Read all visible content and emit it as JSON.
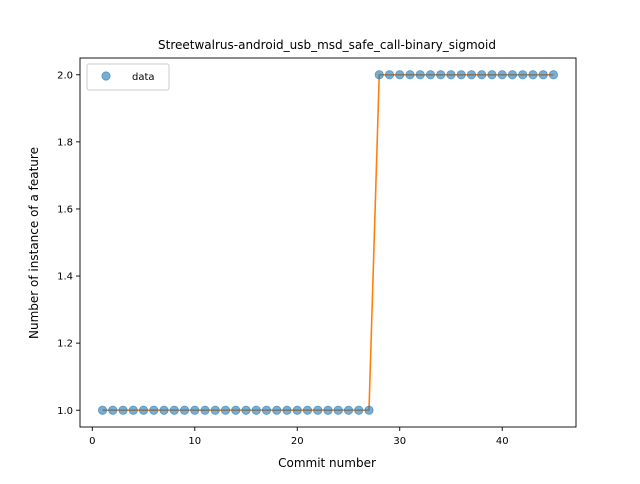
{
  "chart_data": {
    "type": "line",
    "title": "Streetwalrus-android_usb_msd_safe_call-binary_sigmoid",
    "xlabel": "Commit number",
    "ylabel": "Number of instance of a feature",
    "xlim": [
      -1.2,
      47.2
    ],
    "ylim": [
      0.95,
      2.05
    ],
    "xticks": [
      0,
      10,
      20,
      30,
      40
    ],
    "yticks": [
      1.0,
      1.2,
      1.4,
      1.6,
      1.8,
      2.0
    ],
    "ytick_labels": [
      "1.0",
      "1.2",
      "1.4",
      "1.6",
      "1.8",
      "2.0"
    ],
    "grid": false,
    "legend": {
      "position": "top-left",
      "entries": [
        "data"
      ]
    },
    "series": [
      {
        "name": "data",
        "style": "markers",
        "color": "#1f77b4",
        "x": [
          1,
          2,
          3,
          4,
          5,
          6,
          7,
          8,
          9,
          10,
          11,
          12,
          13,
          14,
          15,
          16,
          17,
          18,
          19,
          20,
          21,
          22,
          23,
          24,
          25,
          26,
          27,
          28,
          29,
          30,
          31,
          32,
          33,
          34,
          35,
          36,
          37,
          38,
          39,
          40,
          41,
          42,
          43,
          44,
          45
        ],
        "y": [
          1,
          1,
          1,
          1,
          1,
          1,
          1,
          1,
          1,
          1,
          1,
          1,
          1,
          1,
          1,
          1,
          1,
          1,
          1,
          1,
          1,
          1,
          1,
          1,
          1,
          1,
          1,
          2,
          2,
          2,
          2,
          2,
          2,
          2,
          2,
          2,
          2,
          2,
          2,
          2,
          2,
          2,
          2,
          2,
          2
        ]
      },
      {
        "style": "line",
        "color": "#ff7f0e",
        "x": [
          1,
          2,
          3,
          4,
          5,
          6,
          7,
          8,
          9,
          10,
          11,
          12,
          13,
          14,
          15,
          16,
          17,
          18,
          19,
          20,
          21,
          22,
          23,
          24,
          25,
          26,
          27,
          28,
          29,
          30,
          31,
          32,
          33,
          34,
          35,
          36,
          37,
          38,
          39,
          40,
          41,
          42,
          43,
          44,
          45
        ],
        "y": [
          1,
          1,
          1,
          1,
          1,
          1,
          1,
          1,
          1,
          1,
          1,
          1,
          1,
          1,
          1,
          1,
          1,
          1,
          1,
          1,
          1,
          1,
          1,
          1,
          1,
          1,
          1,
          2,
          2,
          2,
          2,
          2,
          2,
          2,
          2,
          2,
          2,
          2,
          2,
          2,
          2,
          2,
          2,
          2,
          2
        ]
      }
    ]
  }
}
